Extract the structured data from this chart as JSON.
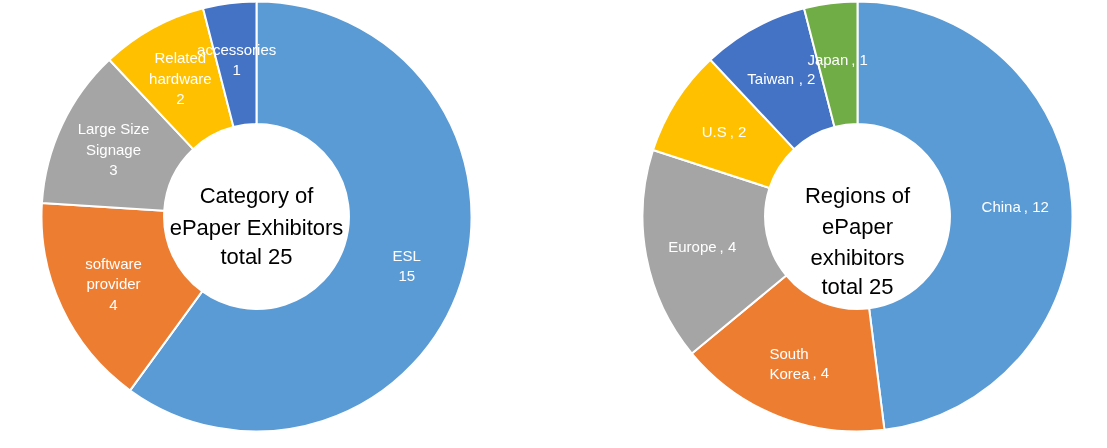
{
  "chart_data": [
    {
      "type": "donut",
      "title": "Category of ePaper Exhibitors",
      "subtitle": "total 25",
      "categories": [
        "ESL",
        "software provider",
        "Large Size Signage",
        "Related hardware",
        "accessories"
      ],
      "values": [
        15,
        4,
        3,
        2,
        1
      ],
      "colors": [
        "#5b9bd5",
        "#ed7d31",
        "#a5a5a5",
        "#ffc000",
        "#4472c4"
      ],
      "data_labels": true
    },
    {
      "type": "donut",
      "title": "Regions of ePaper exhibitors",
      "subtitle": "total 25",
      "categories": [
        "China",
        "South Korea",
        "Europe",
        "U.S",
        "Taiwan",
        "Japan"
      ],
      "values": [
        12,
        4,
        4,
        2,
        2,
        1
      ],
      "value_labels": [
        ", 12",
        ", 4",
        ", 4",
        ", 2",
        ", 2",
        ", 1"
      ],
      "colors": [
        "#5b9bd5",
        "#ed7d31",
        "#a5a5a5",
        "#ffc000",
        "#4472c4",
        "#70ad47"
      ]
    }
  ]
}
